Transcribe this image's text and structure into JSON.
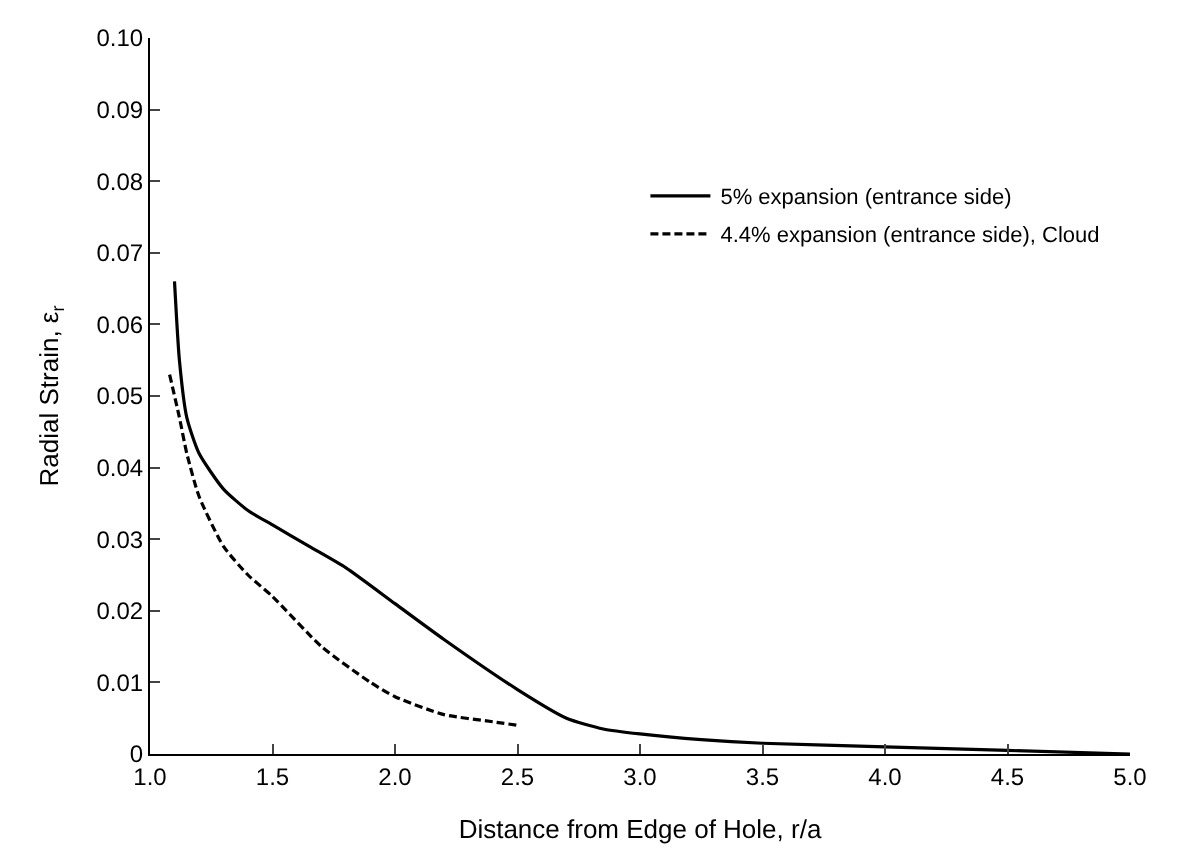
{
  "chart_data": {
    "type": "line",
    "xlabel": "Distance from Edge of Hole, r/a",
    "ylabel": "Radial Strain, ε$_{r}$",
    "series": [
      {
        "name": "5% expansion (entrance side)",
        "color": "#000000",
        "line_style": "solid",
        "x": [
          1.1,
          1.12,
          1.15,
          1.2,
          1.3,
          1.4,
          1.5,
          1.65,
          1.8,
          2.0,
          2.2,
          2.5,
          2.7,
          2.85,
          3.0,
          3.25,
          3.5,
          4.0,
          4.5,
          5.0
        ],
        "values": [
          0.066,
          0.055,
          0.047,
          0.042,
          0.037,
          0.034,
          0.032,
          0.029,
          0.026,
          0.021,
          0.016,
          0.009,
          0.005,
          0.0035,
          0.0028,
          0.002,
          0.0015,
          0.001,
          0.0005,
          0.0
        ]
      },
      {
        "name": "4.4% expansion (entrance side), Cloud",
        "color": "#000000",
        "line_style": "dashed",
        "x": [
          1.08,
          1.12,
          1.15,
          1.2,
          1.3,
          1.4,
          1.5,
          1.7,
          1.9,
          2.0,
          2.2,
          2.4,
          2.5
        ],
        "values": [
          0.053,
          0.047,
          0.042,
          0.036,
          0.029,
          0.025,
          0.022,
          0.015,
          0.01,
          0.008,
          0.0055,
          0.0045,
          0.004
        ]
      }
    ],
    "xlim": [
      1.0,
      5.0
    ],
    "xticks": [
      {
        "value": 1.0,
        "label": "1.0"
      },
      1.5,
      {
        "value": 2.0,
        "label": "2.0"
      },
      2.5,
      {
        "value": 3.0,
        "label": "3.0"
      },
      3.5,
      {
        "value": 4.0,
        "label": "4.0"
      },
      4.5,
      {
        "value": 5.0,
        "label": "5.0"
      }
    ],
    "ylim": [
      0,
      0.1
    ],
    "yticks": [
      0,
      0.01,
      0.02,
      0.03,
      0.04,
      0.05,
      0.06,
      0.07,
      0.08,
      0.09,
      {
        "value": 0.1,
        "label": "0.10"
      }
    ],
    "legend": "top right"
  }
}
